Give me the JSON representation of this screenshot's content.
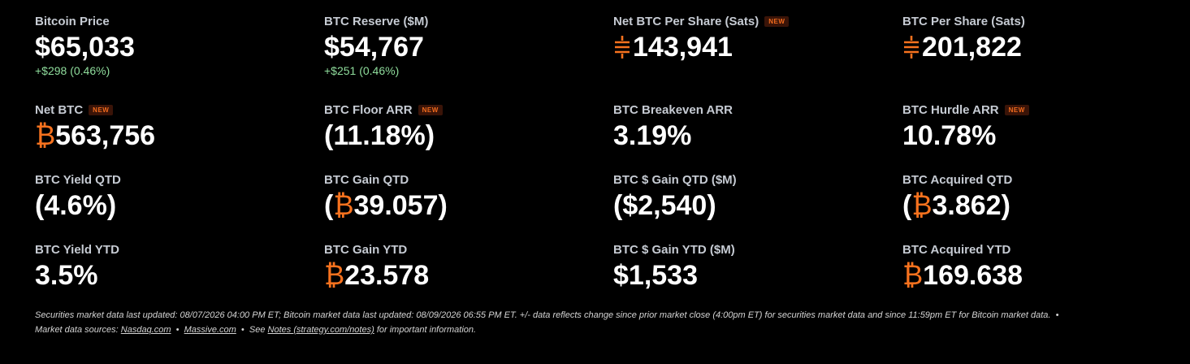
{
  "metrics": [
    {
      "label": "Bitcoin Price",
      "value": "$65,033",
      "change": "+$298 (0.46%)"
    },
    {
      "label": "BTC Reserve ($M)",
      "value": "$54,767",
      "change": "+$251 (0.46%)"
    },
    {
      "label": "Net BTC Per Share (Sats)",
      "badge": "NEW",
      "sats_icon": true,
      "value": "143,941"
    },
    {
      "label": "BTC Per Share (Sats)",
      "sats_icon": true,
      "value": "201,822"
    },
    {
      "label": "Net BTC",
      "badge": "NEW",
      "symbol": "₿",
      "value": "563,756"
    },
    {
      "label": "BTC Floor ARR",
      "badge": "NEW",
      "value": "(11.18%)"
    },
    {
      "label": "BTC Breakeven ARR",
      "value": "3.19%"
    },
    {
      "label": "BTC Hurdle ARR",
      "badge": "NEW",
      "value": "10.78%"
    },
    {
      "label": "BTC Yield QTD",
      "value": "(4.6%)"
    },
    {
      "label": "BTC Gain QTD",
      "pre": "(",
      "symbol": "₿",
      "value": "39.057",
      "post": ")"
    },
    {
      "label": "BTC $ Gain QTD ($M)",
      "value": "($2,540)"
    },
    {
      "label": "BTC Acquired QTD",
      "pre": "(",
      "symbol": "₿",
      "value": "3.862",
      "post": ")"
    },
    {
      "label": "BTC Yield YTD",
      "value": "3.5%"
    },
    {
      "label": "BTC Gain YTD",
      "symbol": "₿",
      "value": "23.578"
    },
    {
      "label": "BTC $ Gain YTD ($M)",
      "value": "$1,533"
    },
    {
      "label": "BTC Acquired YTD",
      "symbol": "₿",
      "value": "169.638"
    }
  ],
  "footer": [
    [
      {
        "text": "Securities market data last updated: 08/07/2026 04:00 PM ET; Bitcoin market data last updated: 08/09/2026 06:55 PM ET. +/- data reflects change since prior market close (4:00pm ET) for securities market data and since 11:59pm ET for Bitcoin market data.  •"
      }
    ],
    [
      {
        "text": "Market data sources: "
      },
      {
        "text": "Nasdaq.com",
        "link": true
      },
      {
        "text": "  •  "
      },
      {
        "text": "Massive.com",
        "link": true
      },
      {
        "text": "  •  See "
      },
      {
        "text": "Notes (strategy.com/notes)",
        "link": true
      },
      {
        "text": " for important information."
      }
    ]
  ]
}
